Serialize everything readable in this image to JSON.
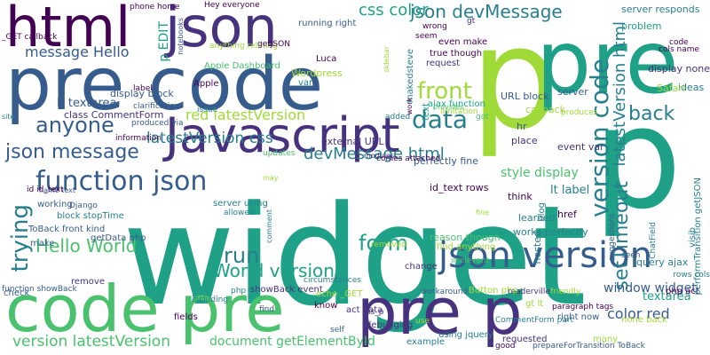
{
  "word_cloud": {
    "background": "#ffffff",
    "palette": [
      "#440154",
      "#46327e",
      "#365c8d",
      "#277f8e",
      "#1fa187",
      "#4ac16d",
      "#a0da39",
      "#fde725"
    ],
    "words": [
      {
        "text": "widget",
        "color": "#1fa187"
      },
      {
        "text": "p",
        "color": "#a0da39"
      },
      {
        "text": "p",
        "color": "#1fa187"
      },
      {
        "text": "pre",
        "color": "#1fa187"
      },
      {
        "text": "pre code",
        "color": "#365c8d"
      },
      {
        "text": "code pre",
        "color": "#4ac16d"
      },
      {
        "text": "pre p",
        "color": "#46327e"
      },
      {
        "text": "html",
        "color": "#440154"
      },
      {
        "text": "json",
        "color": "#46327e"
      },
      {
        "text": "Javascript",
        "color": "#46327e"
      },
      {
        "text": "json version",
        "color": "#365c8d"
      },
      {
        "text": "function json",
        "color": "#365c8d"
      },
      {
        "text": "version code",
        "color": "#277f8e"
      },
      {
        "text": "data",
        "color": "#277f8e"
      },
      {
        "text": "front",
        "color": "#a0da39"
      },
      {
        "text": "back",
        "color": "#277f8e"
      },
      {
        "text": "json message",
        "color": "#365c8d"
      },
      {
        "text": "anyone",
        "color": "#365c8d"
      },
      {
        "text": "form",
        "color": "#1fa187"
      },
      {
        "text": "run",
        "color": "#277f8e"
      },
      {
        "text": "trying",
        "color": "#277f8e"
      },
      {
        "text": "setTimeout",
        "color": "#277f8e"
      },
      {
        "text": "Hello World",
        "color": "#4ac16d"
      },
      {
        "text": "World version",
        "color": "#1fa187"
      },
      {
        "text": "json devMessage",
        "color": "#277f8e"
      },
      {
        "text": "css color",
        "color": "#1fa187"
      },
      {
        "text": "devMessage html",
        "color": "#277f8e"
      },
      {
        "text": "latestVersion css",
        "color": "#277f8e"
      },
      {
        "text": "latestVersion html",
        "color": "#277f8e"
      },
      {
        "text": "version latestVersion",
        "color": "#4ac16d"
      },
      {
        "text": "red latestVersion",
        "color": "#a0da39"
      },
      {
        "text": "message Hello",
        "color": "#365c8d"
      },
      {
        "text": "color red",
        "color": "#365c8d"
      },
      {
        "text": "document getElementById",
        "color": "#4ac16d"
      },
      {
        "text": "window widget",
        "color": "#365c8d"
      },
      {
        "text": "p EDIT",
        "color": "#1fa187"
      },
      {
        "text": "style display",
        "color": "#4ac16d"
      },
      {
        "text": "lt textarea",
        "color": "#365c8d"
      },
      {
        "text": "lt label",
        "color": "#277f8e"
      },
      {
        "text": "textarea",
        "color": "#1fa187"
      },
      {
        "text": "display block",
        "color": "#365c8d"
      },
      {
        "text": "class CommentForm",
        "color": "#46327e"
      },
      {
        "text": "perfectly fine",
        "color": "#365c8d"
      },
      {
        "text": "display none",
        "color": "#46327e"
      },
      {
        "text": "jquery ajax",
        "color": "#277f8e"
      },
      {
        "text": "server responds",
        "color": "#277f8e"
      },
      {
        "text": "problem",
        "color": "#1fa187"
      },
      {
        "text": "ideas",
        "color": "#277f8e"
      },
      {
        "text": "Safari",
        "color": "#a0da39"
      },
      {
        "text": "URL block",
        "color": "#365c8d"
      },
      {
        "text": "server",
        "color": "#365c8d"
      },
      {
        "text": "callback",
        "color": "#a0da39"
      },
      {
        "text": "hr",
        "color": "#365c8d"
      },
      {
        "text": "place",
        "color": "#46327e"
      },
      {
        "text": "event var",
        "color": "#46327e"
      },
      {
        "text": "external URL",
        "color": "#46327e"
      },
      {
        "text": "id_text rows",
        "color": "#440154"
      },
      {
        "text": "comes attached",
        "color": "#440154"
      },
      {
        "text": "updates",
        "color": "#4ac16d"
      },
      {
        "text": "server using",
        "color": "#277f8e"
      },
      {
        "text": "allowed",
        "color": "#277f8e"
      },
      {
        "text": "think",
        "color": "#440154"
      },
      {
        "text": "href",
        "color": "#440154"
      },
      {
        "text": "blog",
        "color": "#277f8e"
      },
      {
        "text": "learned",
        "color": "#277f8e"
      },
      {
        "text": "works perfectly",
        "color": "#277f8e"
      },
      {
        "text": "reason though",
        "color": "#4ac16d"
      },
      {
        "text": "find anything",
        "color": "#a0da39"
      },
      {
        "text": "removed",
        "color": "#a0da39"
      },
      {
        "text": "irrelevant",
        "color": "#4ac16d"
      },
      {
        "text": "seen",
        "color": "#365c8d"
      },
      {
        "text": "suggestions",
        "color": "#365c8d"
      },
      {
        "text": "ChatField",
        "color": "#277f8e"
      },
      {
        "text": "rows cols",
        "color": "#277f8e"
      },
      {
        "text": "php act",
        "color": "#440154"
      },
      {
        "text": "none back",
        "color": "#a0da39"
      },
      {
        "text": "right now",
        "color": "#365c8d"
      },
      {
        "text": "paragraph tags",
        "color": "#440154"
      },
      {
        "text": "gt lt",
        "color": "#a0da39"
      },
      {
        "text": "prepareForTransition ToBack",
        "color": "#365c8d"
      },
      {
        "text": "CommentForm part",
        "color": "#277f8e"
      },
      {
        "text": "requested",
        "color": "#46327e"
      },
      {
        "text": "many",
        "color": "#a0da39"
      },
      {
        "text": "good",
        "color": "#440154"
      },
      {
        "text": "example",
        "color": "#277f8e"
      },
      {
        "text": "using jquery",
        "color": "#277f8e"
      },
      {
        "text": "debugging",
        "color": "#46327e"
      },
      {
        "text": "as_p",
        "color": "#46327e"
      },
      {
        "text": "act data",
        "color": "#46327e"
      },
      {
        "text": "self",
        "color": "#365c8d"
      },
      {
        "text": "fields",
        "color": "#440154"
      },
      {
        "text": "including",
        "color": "#277f8e"
      },
      {
        "text": "php",
        "color": "#277f8e"
      },
      {
        "text": "remove",
        "color": "#46327e"
      },
      {
        "text": "check",
        "color": "#365c8d"
      },
      {
        "text": "function showBack",
        "color": "#365c8d"
      },
      {
        "text": "showBack event",
        "color": "#46327e"
      },
      {
        "text": "circumstances",
        "color": "#277f8e"
      },
      {
        "text": "know",
        "color": "#440154"
      },
      {
        "text": "echo _GET",
        "color": "#a0da39"
      },
      {
        "text": "workaround",
        "color": "#365c8d"
      },
      {
        "text": "readerville",
        "color": "#46327e"
      },
      {
        "text": "friendly",
        "color": "#a0da39"
      },
      {
        "text": "Button php",
        "color": "#a0da39"
      },
      {
        "text": "change",
        "color": "#46327e"
      },
      {
        "text": "make",
        "color": "#365c8d"
      },
      {
        "text": "ToBack front kind",
        "color": "#365c8d"
      },
      {
        "text": "getData php",
        "color": "#365c8d"
      },
      {
        "text": "block stopTime",
        "color": "#277f8e"
      },
      {
        "text": "working",
        "color": "#365c8d"
      },
      {
        "text": "Django",
        "color": "#365c8d"
      },
      {
        "text": "name text",
        "color": "#365c8d"
      },
      {
        "text": "id id_text",
        "color": "#440154"
      },
      {
        "text": "information",
        "color": "#440154"
      },
      {
        "text": "produced via",
        "color": "#365c8d"
      },
      {
        "text": "clarification",
        "color": "#365c8d"
      },
      {
        "text": "Apple",
        "color": "#440154"
      },
      {
        "text": "label",
        "color": "#440154"
      },
      {
        "text": "issue",
        "color": "#277f8e"
      },
      {
        "text": "Apple Dashboard",
        "color": "#4ac16d"
      },
      {
        "text": "anything relating",
        "color": "#a0da39"
      },
      {
        "text": "Wordpress",
        "color": "#a0da39"
      },
      {
        "text": "Luca",
        "color": "#440154"
      },
      {
        "text": "var",
        "color": "#277f8e"
      },
      {
        "text": "getJSON",
        "color": "#440154"
      },
      {
        "text": "running right",
        "color": "#365c8d"
      },
      {
        "text": "wrong",
        "color": "#440154"
      },
      {
        "text": "seem",
        "color": "#440154"
      },
      {
        "text": "even make",
        "color": "#440154"
      },
      {
        "text": "true though",
        "color": "#440154"
      },
      {
        "text": "request",
        "color": "#46327e"
      },
      {
        "text": "gt",
        "color": "#46327e"
      },
      {
        "text": "ajax function",
        "color": "#1fa187"
      },
      {
        "text": "limitation",
        "color": "#a0da39"
      },
      {
        "text": "added",
        "color": "#277f8e"
      },
      {
        "text": "got",
        "color": "#4ac16d"
      },
      {
        "text": "produces",
        "color": "#a0da39"
      },
      {
        "text": "modules",
        "color": "#46327e"
      },
      {
        "text": "may",
        "color": "#a0da39"
      },
      {
        "text": "comment",
        "color": "#277f8e"
      },
      {
        "text": "fine",
        "color": "#a0da39"
      },
      {
        "text": "hosted",
        "color": "#277f8e"
      },
      {
        "text": "use",
        "color": "#a0da39"
      },
      {
        "text": "find",
        "color": "#365c8d"
      },
      {
        "text": "Hey everyone",
        "color": "#440154"
      },
      {
        "text": "phone home",
        "color": "#440154"
      },
      {
        "text": "notebooks",
        "color": "#365c8d"
      },
      {
        "text": "_GET callback",
        "color": "#440154"
      },
      {
        "text": "site",
        "color": "#277f8e"
      },
      {
        "text": "makedsteve",
        "color": "#277f8e"
      },
      {
        "text": "sidebar",
        "color": "#a0da39"
      },
      {
        "text": "work",
        "color": "#440154"
      },
      {
        "text": "text",
        "color": "#1fa187"
      },
      {
        "text": "provides",
        "color": "#4ac16d"
      },
      {
        "text": "code",
        "color": "#440154"
      },
      {
        "text": "cols name",
        "color": "#440154"
      },
      {
        "text": "performTransition getJSON",
        "color": "#277f8e"
      },
      {
        "text": "visib",
        "color": "#277f8e"
      }
    ]
  }
}
